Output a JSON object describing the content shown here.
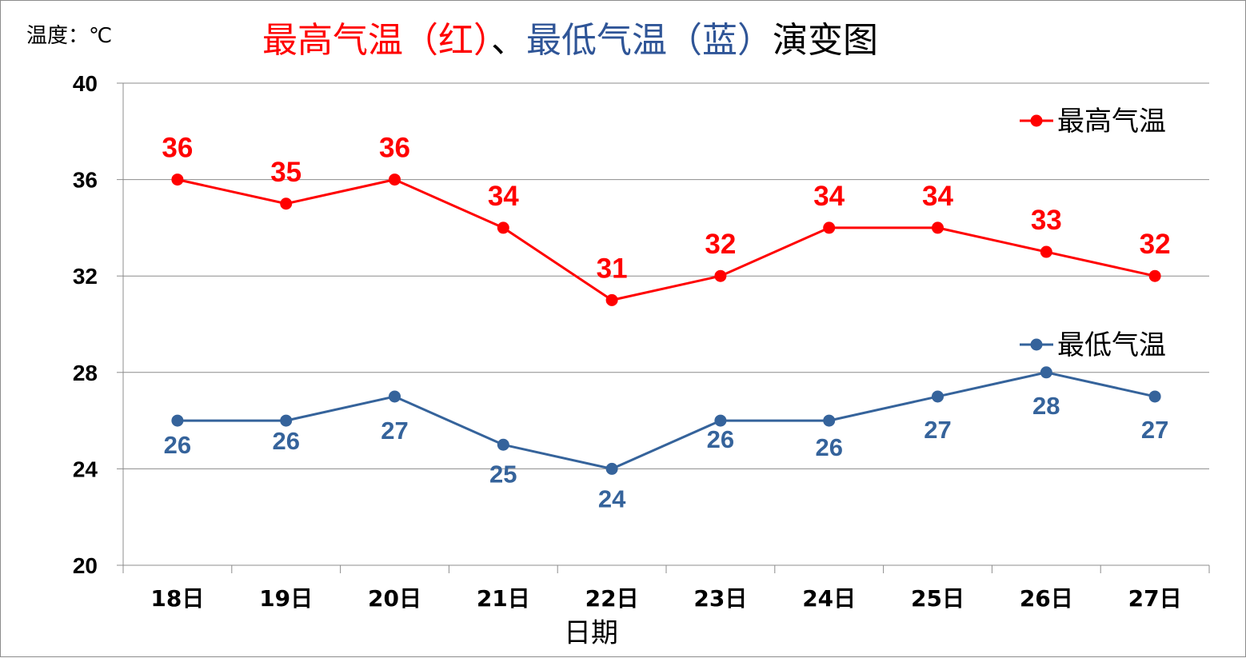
{
  "chart_data": {
    "type": "line",
    "title": {
      "parts": [
        {
          "text": "最高气温（红）",
          "color": "#ff0000"
        },
        {
          "text": "、",
          "color": "#000000"
        },
        {
          "text": "最低气温（蓝）",
          "color": "#2f5597"
        },
        {
          "text": "演变图",
          "color": "#000000"
        }
      ]
    },
    "y_unit_label": "温度：℃",
    "xlabel": "日期",
    "categories": [
      "18日",
      "19日",
      "20日",
      "21日",
      "22日",
      "23日",
      "24日",
      "25日",
      "26日",
      "27日"
    ],
    "ylim": [
      20,
      40
    ],
    "yticks": [
      20,
      24,
      28,
      32,
      36,
      40
    ],
    "grid": true,
    "legend_position": "right",
    "series": [
      {
        "name": "最高气温",
        "color": "#ff0000",
        "values": [
          36,
          35,
          36,
          34,
          31,
          32,
          34,
          34,
          33,
          32
        ],
        "label_position": "above"
      },
      {
        "name": "最低气温",
        "color": "#35639b",
        "values": [
          26,
          26,
          27,
          25,
          24,
          26,
          26,
          27,
          28,
          27
        ],
        "label_position": "below"
      }
    ]
  }
}
